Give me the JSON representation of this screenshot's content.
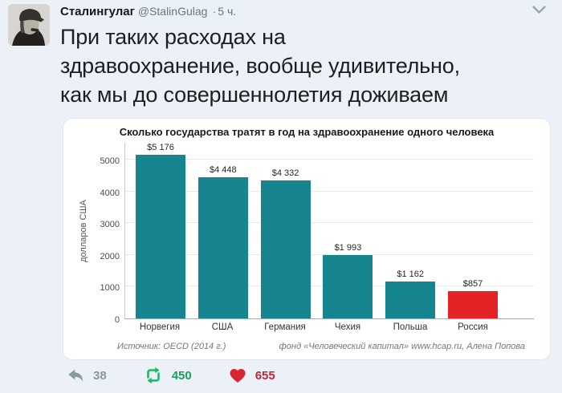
{
  "page": {
    "background": "#ecf1f7"
  },
  "tweet": {
    "author": "Сталингулаг",
    "handle": "@StalinGulag",
    "separator": "·",
    "time": "5 ч.",
    "text": "При таких расходах на здравоохранение, вообще удивительно, как мы до совершеннолетия доживаем",
    "text_lines": [
      "При таких расходах на",
      "здравоохранение, вообще удивительно,",
      "как мы до совершеннолетия доживаем"
    ],
    "actions": {
      "reply_count": "38",
      "retweet_count": "450",
      "like_count": "655"
    }
  },
  "icons": {
    "avatar": "stalin-portrait-photo",
    "more": "chevron-down",
    "reply": "reply-arrow",
    "retweet": "retweet-arrows",
    "like": "heart"
  },
  "colors": {
    "bar_teal": "#17858f",
    "bar_red": "#e42327",
    "retweet_green": "#18bb63",
    "like_red": "#da2430",
    "reply_gray": "#8899a6"
  },
  "chart_data": {
    "type": "bar",
    "title": "Сколько государства тратят в год на здравоохранение одного человека",
    "ylabel": "долларов США",
    "xlabel": "",
    "categories": [
      "Норвегия",
      "США",
      "Германия",
      "Чехия",
      "Польша",
      "Россия"
    ],
    "values": [
      5176,
      4448,
      4332,
      1993,
      1162,
      857
    ],
    "value_labels": [
      "$5 176",
      "$4 448",
      "$4 332",
      "$1 993",
      "$1 162",
      "$857"
    ],
    "bar_colors": [
      "#17858f",
      "#17858f",
      "#17858f",
      "#17858f",
      "#17858f",
      "#e42327"
    ],
    "yticks": [
      0,
      1000,
      2000,
      3000,
      4000,
      5000
    ],
    "ylim": [
      0,
      5300
    ],
    "grid": true,
    "legend": false,
    "footnote_left": "Источник: OECD (2014 г.)",
    "footnote_right": "фонд «Человеческий капитал» www.hcap.ru, Алена Попова"
  }
}
